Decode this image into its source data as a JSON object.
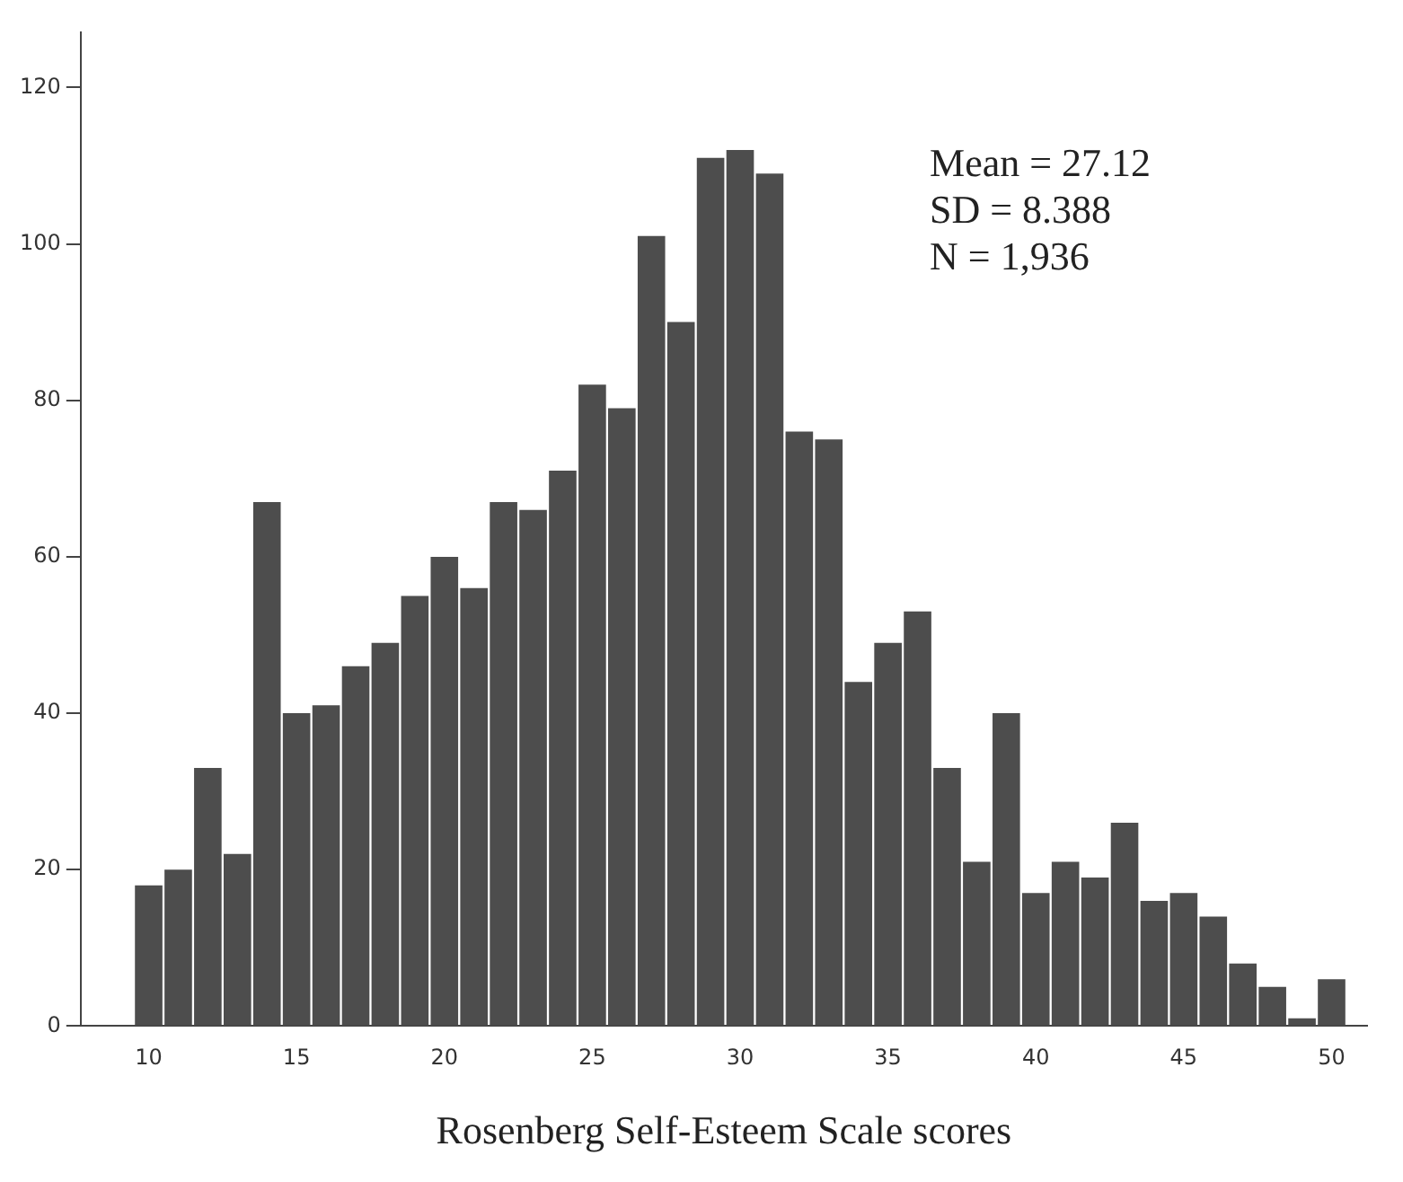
{
  "chart_data": {
    "type": "histogram",
    "xlabel": "Rosenberg Self-Esteem Scale scores",
    "bins": [
      9.5,
      10.5,
      11.5,
      12.5,
      13.5,
      14.5,
      15.5,
      16.5,
      17.5,
      18.5,
      19.5,
      20.5,
      21.5,
      22.5,
      23.5,
      24.5,
      25.5,
      26.5,
      27.5,
      28.5,
      29.5,
      30.5,
      31.5,
      32.5,
      33.5,
      34.5,
      35.5,
      36.5,
      37.5,
      38.5,
      39.5,
      40.5,
      41.5,
      42.5,
      43.5,
      44.5,
      45.5,
      46.5,
      47.5,
      48.5,
      49.5,
      50.5
    ],
    "values": [
      18,
      20,
      33,
      22,
      67,
      40,
      41,
      46,
      49,
      55,
      60,
      56,
      67,
      66,
      71,
      82,
      79,
      101,
      90,
      111,
      112,
      109,
      76,
      75,
      44,
      49,
      53,
      33,
      21,
      40,
      17,
      21,
      19,
      26,
      16,
      17,
      14,
      8,
      5,
      1,
      6
    ],
    "color": "#4d4d4d",
    "xlim": [
      7.7,
      51.2
    ],
    "xticks": [
      10,
      15,
      20,
      25,
      30,
      35,
      40,
      45,
      50
    ],
    "ylim": [
      0,
      127
    ],
    "yticks": [
      0,
      20,
      40,
      60,
      80,
      100,
      120
    ],
    "grid": false,
    "legend": false,
    "annotations": [
      "Mean = 27.12",
      "SD = 8.388",
      "N = 1,936"
    ]
  }
}
